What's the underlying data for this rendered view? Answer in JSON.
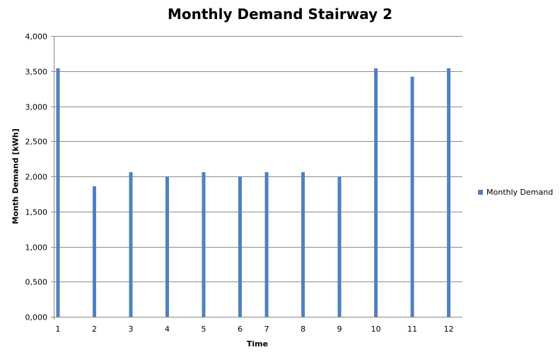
{
  "chart_data": {
    "type": "bar",
    "title": "Monthly Demand Stairway 2",
    "xlabel": "Time",
    "ylabel": "Month Demand [kWh]",
    "categories": [
      1,
      2,
      3,
      4,
      5,
      6,
      7,
      8,
      9,
      10,
      11,
      12
    ],
    "series": [
      {
        "name": "Monthly Demand",
        "color": "#4f81bd",
        "values": [
          3540,
          1860,
          2060,
          2000,
          2060,
          2000,
          2060,
          2060,
          2000,
          3540,
          3420,
          3540
        ]
      }
    ],
    "x_positions": [
      1,
      2,
      3,
      4,
      5,
      6,
      6.73,
      7.73,
      8.73,
      9.73,
      10.73,
      11.73
    ],
    "ylim": [
      0,
      4000
    ],
    "yticks": [
      0,
      500,
      1000,
      1500,
      2000,
      2500,
      3000,
      3500,
      4000
    ],
    "ytick_labels": [
      "0,000",
      "0,500",
      "1,000",
      "1,500",
      "2,000",
      "2,500",
      "3,000",
      "3,500",
      "4,000"
    ],
    "grid": true,
    "legend": "right"
  }
}
